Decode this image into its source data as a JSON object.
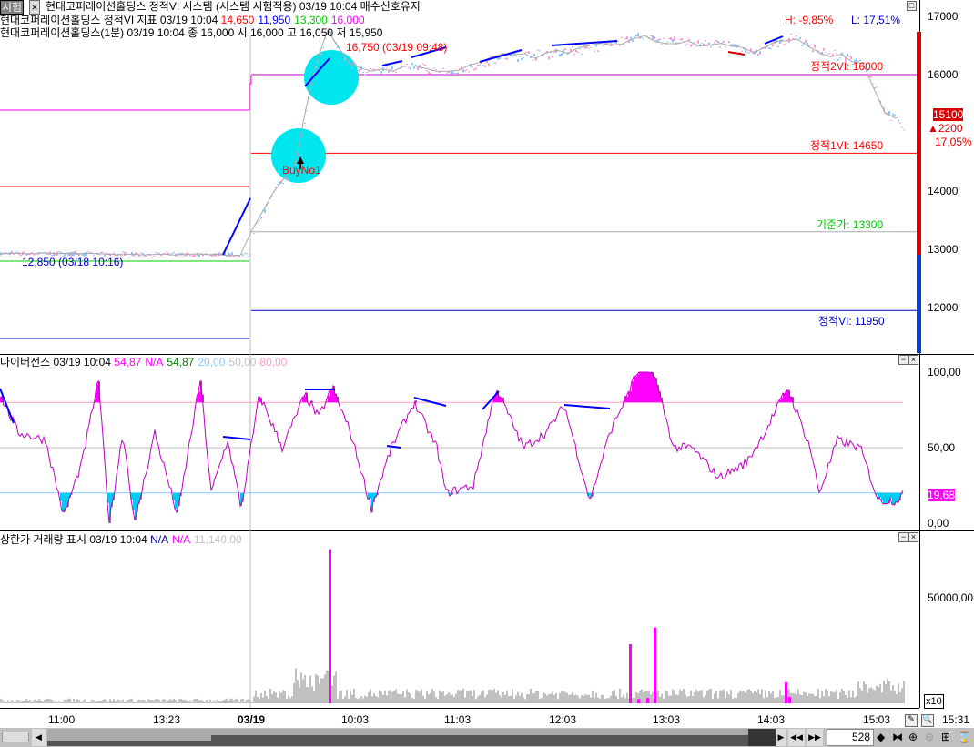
{
  "header": {
    "tag": "시험",
    "close": "×",
    "title": "현대코퍼레이션홀딩스 정적VI 시스템 (시스템 시험적용) 03/19 10:04 매수신호유지",
    "line2_label": "현대코퍼레이션홀딩스 정적VI 지표  03/19 10:04",
    "line2_values": [
      {
        "v": "14,650",
        "c": "#ff0000"
      },
      {
        "v": "11,950",
        "c": "#0000ff"
      },
      {
        "v": "13,300",
        "c": "#00cc00"
      },
      {
        "v": "16,000",
        "c": "#ff00ff"
      }
    ],
    "line3": "현대코퍼레이션홀딩스(1분) 03/19 10:04   종 16,000  시 16,000 고 16,050 저 15,950",
    "high_note": "16,750 (03/19 09:48)",
    "low_note": "12,850 (03/18 10:16)",
    "hl_high": "H: -9,85%",
    "hl_low": "L: 17,51%"
  },
  "price_axis": {
    "ticks": [
      "17000",
      "16000",
      "14000",
      "13000",
      "12000"
    ],
    "current": "15100",
    "change": "2200",
    "change_pct": "17,05%"
  },
  "levels": {
    "vi2": "정적2VI: 16000",
    "vi1": "정적1VI: 14650",
    "base": "기준가: 13300",
    "vi_low": "정적VI: 11950"
  },
  "signal": {
    "label": "BuyNo1"
  },
  "divergence": {
    "title": "다이버전스  03/19 10:04",
    "values": [
      {
        "v": "54,87",
        "c": "#ff00ff"
      },
      {
        "v": "N/A",
        "c": "#ff00ff"
      },
      {
        "v": "54,87",
        "c": "#008000"
      },
      {
        "v": "20,00",
        "c": "#88c8ff"
      },
      {
        "v": "50,00",
        "c": "#c0c0c0"
      },
      {
        "v": "80,00",
        "c": "#ff99cc"
      }
    ],
    "ticks": [
      "100,00",
      "50,00",
      "0,00"
    ],
    "current": "19,68"
  },
  "volume": {
    "title": "상한가 거래량 표시  03/19 10:04",
    "values": [
      {
        "v": "N/A",
        "c": "#000080"
      },
      {
        "v": "N/A",
        "c": "#ff00ff"
      },
      {
        "v": "11,140,00",
        "c": "#c0c0c0"
      }
    ],
    "ticks": [
      "50000,00"
    ],
    "multiplier": "x10"
  },
  "time_axis": [
    "11:00",
    "13:23",
    "03/19",
    "10:03",
    "11:03",
    "12:03",
    "13:03",
    "14:03",
    "15:03"
  ],
  "time_current": "15:31",
  "scroll": {
    "count": "528"
  },
  "colors": {
    "up": "#ff99cc",
    "down": "#88c8ff",
    "signal": "#00e5ee",
    "accent": "#ff00ff"
  }
}
